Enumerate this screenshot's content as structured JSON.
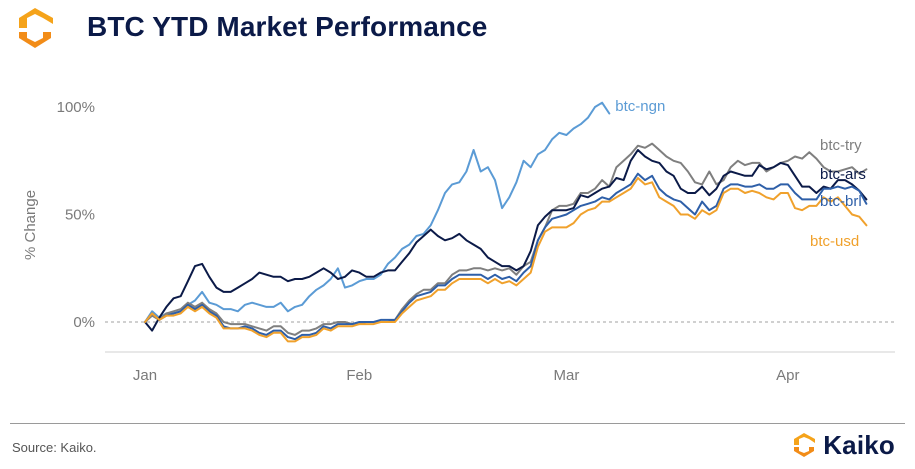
{
  "header": {
    "title": "BTC YTD Market Performance"
  },
  "footer": {
    "source": "Source: Kaiko.",
    "brand": "Kaiko"
  },
  "colors": {
    "title": "#0b1a48",
    "logo_orange": "#f5a31a",
    "logo_dark": "#f28c18"
  },
  "chart_data": {
    "type": "line",
    "title": "BTC YTD Market Performance",
    "xlabel": "",
    "ylabel": "% Change",
    "x_ticks": [
      "Jan",
      "Feb",
      "Mar",
      "Apr"
    ],
    "y_ticks": [
      "0%",
      "50%",
      "100%"
    ],
    "ylim": [
      -15,
      105
    ],
    "x_range": [
      0,
      105
    ],
    "x_tick_positions": [
      0,
      30,
      59,
      90
    ],
    "zero_line": "dashed",
    "series": [
      {
        "name": "btc-ngn",
        "color": "#5b9bd5",
        "end_label": true,
        "x": [
          0,
          1,
          2,
          3,
          4,
          5,
          6,
          7,
          8,
          9,
          10,
          11,
          12,
          13,
          14,
          15,
          16,
          17,
          18,
          19,
          20,
          21,
          22,
          23,
          24,
          25,
          26,
          27,
          28,
          29,
          30,
          31,
          32,
          33,
          34,
          35,
          36,
          37,
          38,
          39,
          40,
          41,
          42,
          43,
          44,
          45,
          46,
          47,
          48,
          49,
          50,
          51,
          52,
          53,
          54,
          55,
          56,
          57,
          58,
          59,
          60,
          61,
          62,
          63,
          64,
          65
        ],
        "values": [
          0,
          5,
          2,
          4,
          4,
          5,
          8,
          10,
          14,
          9,
          8,
          6,
          6,
          5,
          8,
          9,
          8,
          7,
          7,
          9,
          5,
          7,
          8,
          12,
          15,
          17,
          20,
          25,
          16,
          17,
          19,
          20,
          20,
          22,
          27,
          30,
          34,
          36,
          40,
          41,
          45,
          52,
          60,
          64,
          65,
          70,
          80,
          70,
          72,
          66,
          53,
          58,
          65,
          75,
          72,
          78,
          80,
          85,
          88,
          87,
          90,
          92,
          95,
          100,
          102,
          97
        ]
      },
      {
        "name": "btc-try",
        "color": "#7f7f7f",
        "end_label": true,
        "x": [
          0,
          1,
          2,
          3,
          4,
          5,
          6,
          7,
          8,
          9,
          10,
          11,
          12,
          13,
          14,
          15,
          16,
          17,
          18,
          19,
          20,
          21,
          22,
          23,
          24,
          25,
          26,
          27,
          28,
          29,
          30,
          31,
          32,
          33,
          34,
          35,
          36,
          37,
          38,
          39,
          40,
          41,
          42,
          43,
          44,
          45,
          46,
          47,
          48,
          49,
          50,
          51,
          52,
          53,
          54,
          55,
          56,
          57,
          58,
          59,
          60,
          61,
          62,
          63,
          64,
          65,
          66,
          67,
          68,
          69,
          70,
          71,
          72,
          73,
          74,
          75,
          76,
          77,
          78,
          79,
          80,
          81,
          82,
          83,
          84,
          85,
          86,
          87,
          88,
          89,
          90,
          91,
          92,
          93,
          94,
          95,
          96,
          97,
          98,
          99,
          100,
          101
        ],
        "values": [
          0,
          3,
          1,
          4,
          5,
          6,
          9,
          7,
          9,
          6,
          4,
          0,
          -1,
          -1,
          -1,
          -2,
          -3,
          -4,
          -2,
          -2,
          -5,
          -6,
          -4,
          -4,
          -3,
          -1,
          -1,
          0,
          0,
          -1,
          -1,
          0,
          0,
          0,
          0,
          1,
          6,
          10,
          13,
          15,
          15,
          18,
          18,
          22,
          24,
          24,
          25,
          25,
          24,
          25,
          24,
          25,
          22,
          26,
          28,
          38,
          44,
          52,
          54,
          54,
          55,
          60,
          60,
          62,
          66,
          63,
          72,
          75,
          78,
          82,
          81,
          83,
          80,
          77,
          75,
          74,
          70,
          65,
          64,
          70,
          64,
          66,
          72,
          75,
          73,
          74,
          74,
          70,
          72,
          74,
          75,
          77,
          76,
          79,
          76,
          72,
          70,
          70,
          71,
          72,
          69,
          71
        ]
      },
      {
        "name": "btc-ars",
        "color": "#0b1a48",
        "end_label": true,
        "x": [
          0,
          1,
          2,
          3,
          4,
          5,
          6,
          7,
          8,
          9,
          10,
          11,
          12,
          13,
          14,
          15,
          16,
          17,
          18,
          19,
          20,
          21,
          22,
          23,
          24,
          25,
          26,
          27,
          28,
          29,
          30,
          31,
          32,
          33,
          34,
          35,
          36,
          37,
          38,
          39,
          40,
          41,
          42,
          43,
          44,
          45,
          46,
          47,
          48,
          49,
          50,
          51,
          52,
          53,
          54,
          55,
          56,
          57,
          58,
          59,
          60,
          61,
          62,
          63,
          64,
          65,
          66,
          67,
          68,
          69,
          70,
          71,
          72,
          73,
          74,
          75,
          76,
          77,
          78,
          79,
          80,
          81,
          82,
          83,
          84,
          85,
          86,
          87,
          88,
          89,
          90,
          91,
          92,
          93,
          94,
          95,
          96,
          97,
          98,
          99,
          100,
          101
        ],
        "values": [
          0,
          -4,
          2,
          7,
          11,
          12,
          19,
          26,
          27,
          21,
          16,
          14,
          14,
          16,
          18,
          20,
          23,
          22,
          21,
          21,
          19,
          20,
          20,
          21,
          23,
          25,
          23,
          20,
          21,
          24,
          23,
          21,
          21,
          23,
          24,
          24,
          28,
          32,
          37,
          40,
          43,
          40,
          38,
          39,
          41,
          38,
          36,
          34,
          30,
          28,
          26,
          26,
          24,
          26,
          33,
          45,
          49,
          52,
          52,
          52,
          53,
          59,
          58,
          60,
          62,
          63,
          67,
          66,
          75,
          80,
          77,
          75,
          74,
          70,
          68,
          62,
          60,
          60,
          63,
          59,
          62,
          68,
          70,
          69,
          68,
          68,
          73,
          71,
          72,
          74,
          73,
          68,
          63,
          63,
          60,
          63,
          62,
          66,
          66,
          64,
          61,
          57
        ]
      },
      {
        "name": "btc-brl",
        "color": "#2e5fa8",
        "end_label": true,
        "x": [
          0,
          1,
          2,
          3,
          4,
          5,
          6,
          7,
          8,
          9,
          10,
          11,
          12,
          13,
          14,
          15,
          16,
          17,
          18,
          19,
          20,
          21,
          22,
          23,
          24,
          25,
          26,
          27,
          28,
          29,
          30,
          31,
          32,
          33,
          34,
          35,
          36,
          37,
          38,
          39,
          40,
          41,
          42,
          43,
          44,
          45,
          46,
          47,
          48,
          49,
          50,
          51,
          52,
          53,
          54,
          55,
          56,
          57,
          58,
          59,
          60,
          61,
          62,
          63,
          64,
          65,
          66,
          67,
          68,
          69,
          70,
          71,
          72,
          73,
          74,
          75,
          76,
          77,
          78,
          79,
          80,
          81,
          82,
          83,
          84,
          85,
          86,
          87,
          88,
          89,
          90,
          91,
          92,
          93,
          94,
          95,
          96,
          97,
          98,
          99,
          100,
          101
        ],
        "values": [
          0,
          4,
          1,
          3,
          4,
          5,
          8,
          6,
          8,
          5,
          3,
          -2,
          -3,
          -3,
          -2,
          -3,
          -5,
          -6,
          -4,
          -4,
          -7,
          -8,
          -6,
          -6,
          -5,
          -2,
          -3,
          -1,
          -1,
          -1,
          0,
          0,
          0,
          1,
          1,
          1,
          5,
          9,
          12,
          13,
          14,
          17,
          17,
          20,
          22,
          22,
          22,
          22,
          20,
          22,
          20,
          21,
          19,
          23,
          26,
          38,
          44,
          48,
          49,
          50,
          52,
          54,
          55,
          56,
          58,
          57,
          60,
          62,
          64,
          69,
          66,
          68,
          62,
          59,
          57,
          56,
          53,
          50,
          56,
          52,
          54,
          62,
          64,
          64,
          63,
          63,
          64,
          62,
          62,
          64,
          64,
          60,
          57,
          57,
          57,
          62,
          62,
          63,
          62,
          63,
          61,
          55
        ]
      },
      {
        "name": "btc-usd",
        "color": "#f0a12c",
        "end_label": true,
        "x": [
          0,
          1,
          2,
          3,
          4,
          5,
          6,
          7,
          8,
          9,
          10,
          11,
          12,
          13,
          14,
          15,
          16,
          17,
          18,
          19,
          20,
          21,
          22,
          23,
          24,
          25,
          26,
          27,
          28,
          29,
          30,
          31,
          32,
          33,
          34,
          35,
          36,
          37,
          38,
          39,
          40,
          41,
          42,
          43,
          44,
          45,
          46,
          47,
          48,
          49,
          50,
          51,
          52,
          53,
          54,
          55,
          56,
          57,
          58,
          59,
          60,
          61,
          62,
          63,
          64,
          65,
          66,
          67,
          68,
          69,
          70,
          71,
          72,
          73,
          74,
          75,
          76,
          77,
          78,
          79,
          80,
          81,
          82,
          83,
          84,
          85,
          86,
          87,
          88,
          89,
          90,
          91,
          92,
          93,
          94,
          95,
          96,
          97,
          98,
          99,
          100,
          101
        ],
        "values": [
          0,
          4,
          1,
          3,
          3,
          4,
          7,
          5,
          7,
          4,
          2,
          -3,
          -3,
          -3,
          -3,
          -4,
          -6,
          -7,
          -5,
          -5,
          -9,
          -9,
          -7,
          -7,
          -6,
          -3,
          -4,
          -2,
          -2,
          -2,
          -1,
          -1,
          -1,
          0,
          0,
          0,
          4,
          7,
          10,
          11,
          12,
          15,
          15,
          18,
          20,
          20,
          20,
          20,
          18,
          20,
          18,
          19,
          17,
          20,
          23,
          35,
          42,
          44,
          44,
          44,
          46,
          50,
          52,
          53,
          56,
          56,
          58,
          60,
          62,
          67,
          64,
          65,
          58,
          56,
          54,
          50,
          50,
          48,
          52,
          50,
          52,
          60,
          62,
          62,
          60,
          61,
          60,
          58,
          57,
          60,
          60,
          53,
          52,
          54,
          54,
          58,
          56,
          58,
          54,
          50,
          49,
          45
        ]
      }
    ]
  }
}
